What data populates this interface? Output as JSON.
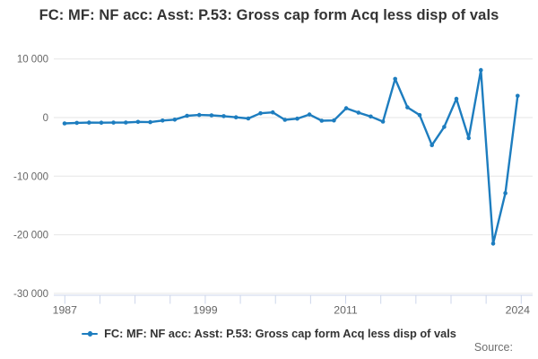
{
  "title": "FC: MF: NF acc: Asst: P.53: Gross cap form Acq less disp of vals",
  "legend": {
    "label": "FC: MF: NF acc: Asst: P.53: Gross cap form Acq less disp of vals"
  },
  "source_label": "Source:",
  "colors": {
    "line": "#1d7dbf",
    "grid": "#e6e6e6",
    "axis": "#ccd6eb",
    "tick_label": "#666666",
    "title_text": "#333333",
    "source_text": "#707070"
  },
  "chart_data": {
    "type": "line",
    "title": "FC: MF: NF acc: Asst: P.53: Gross cap form Acq less disp of vals",
    "legend_entry": "FC: MF: NF acc: Asst: P.53: Gross cap form Acq less disp of vals",
    "legend_position": "bottom",
    "grid": true,
    "marker": "circle",
    "x": [
      1987,
      1988,
      1989,
      1990,
      1991,
      1992,
      1993,
      1994,
      1995,
      1996,
      1997,
      1998,
      1999,
      2000,
      2001,
      2002,
      2003,
      2004,
      2005,
      2006,
      2007,
      2008,
      2009,
      2010,
      2011,
      2012,
      2013,
      2014,
      2015,
      2016,
      2017,
      2018,
      2019,
      2020,
      2021,
      2022,
      2023,
      2024
    ],
    "values": [
      -1000,
      -900,
      -850,
      -880,
      -850,
      -840,
      -730,
      -780,
      -500,
      -350,
      300,
      450,
      380,
      250,
      50,
      -150,
      730,
      890,
      -380,
      -180,
      520,
      -540,
      -490,
      1600,
      840,
      180,
      -690,
      6600,
      1750,
      430,
      -4700,
      -1600,
      3200,
      -3500,
      8100,
      -21500,
      -12900,
      3700
    ],
    "ylim": [
      -30000,
      10000
    ],
    "yticks": [
      10000,
      0,
      -10000,
      -20000,
      -30000
    ],
    "ytick_labels": [
      "10 000",
      "0",
      "-10 000",
      "-20 000",
      "-30 000"
    ],
    "xticks_total": 14,
    "xtick_labels": [
      {
        "tick_index": 0,
        "label": "1987"
      },
      {
        "tick_index": 4,
        "label": "1999"
      },
      {
        "tick_index": 8,
        "label": "2011"
      },
      {
        "tick_index": 13,
        "label": "2024"
      }
    ]
  }
}
